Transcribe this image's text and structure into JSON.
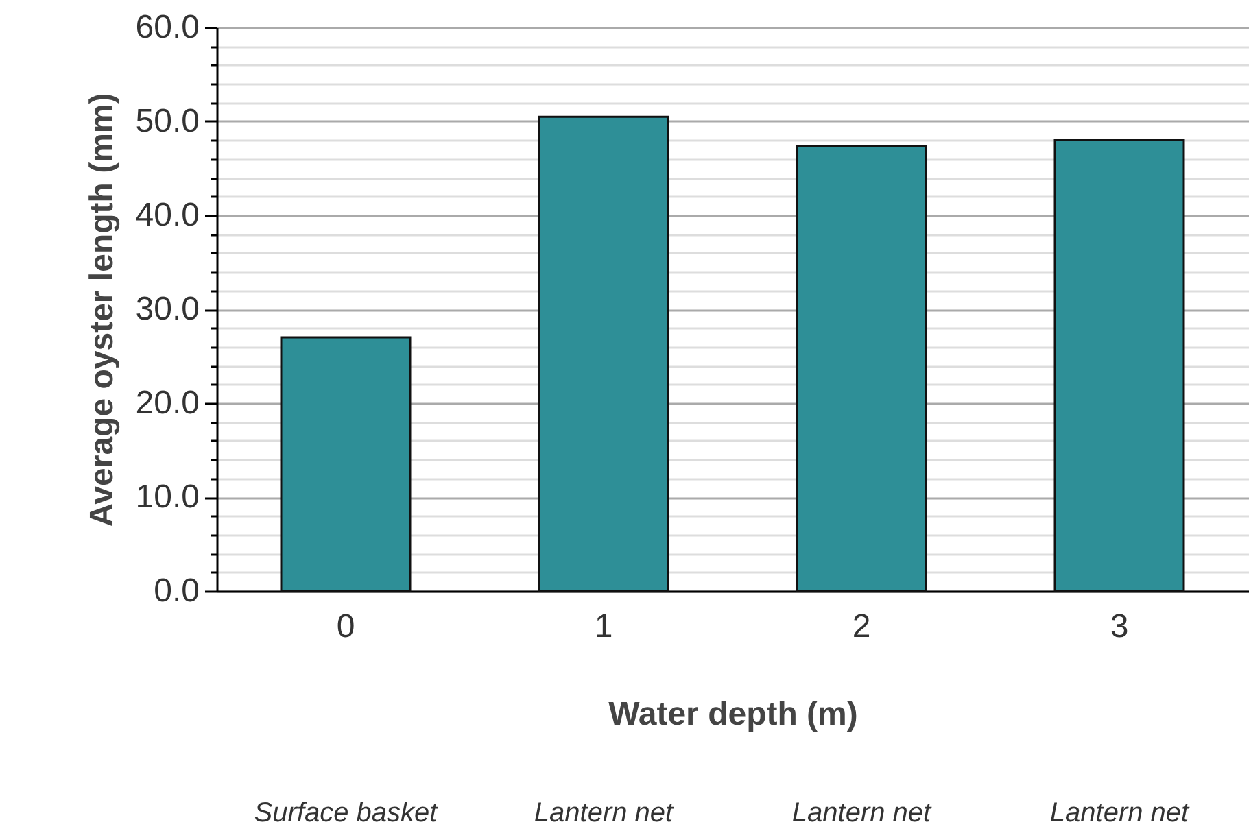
{
  "chart_data": {
    "type": "bar",
    "xlabel": "Water depth (m)",
    "ylabel": "Average oyster length (mm)",
    "categories": [
      "0",
      "1",
      "2",
      "3"
    ],
    "values": [
      27.0,
      50.5,
      47.4,
      48.0
    ],
    "color": "#2e8f97",
    "ylim": [
      0,
      60
    ],
    "yticks": [
      {
        "value": 0,
        "label": "0.0"
      },
      {
        "value": 2,
        "label": null
      },
      {
        "value": 4,
        "label": null
      },
      {
        "value": 6,
        "label": null
      },
      {
        "value": 8,
        "label": null
      },
      {
        "value": 10,
        "label": "10.0"
      },
      {
        "value": 12,
        "label": null
      },
      {
        "value": 14,
        "label": null
      },
      {
        "value": 16,
        "label": null
      },
      {
        "value": 18,
        "label": null
      },
      {
        "value": 20,
        "label": "20.0"
      },
      {
        "value": 22,
        "label": null
      },
      {
        "value": 24,
        "label": null
      },
      {
        "value": 26,
        "label": null
      },
      {
        "value": 28,
        "label": null
      },
      {
        "value": 30,
        "label": "30.0"
      },
      {
        "value": 32,
        "label": null
      },
      {
        "value": 34,
        "label": null
      },
      {
        "value": 36,
        "label": null
      },
      {
        "value": 38,
        "label": null
      },
      {
        "value": 40,
        "label": "40.0"
      },
      {
        "value": 42,
        "label": null
      },
      {
        "value": 44,
        "label": null
      },
      {
        "value": 46,
        "label": null
      },
      {
        "value": 48,
        "label": null
      },
      {
        "value": 50,
        "label": "50.0"
      },
      {
        "value": 52,
        "label": null
      },
      {
        "value": 54,
        "label": null
      },
      {
        "value": 56,
        "label": null
      },
      {
        "value": 58,
        "label": null
      },
      {
        "value": 60,
        "label": "60.0"
      }
    ],
    "grid": "y",
    "annotations": [
      "Surface basket",
      "Lantern net",
      "Lantern net",
      "Lantern net"
    ]
  }
}
